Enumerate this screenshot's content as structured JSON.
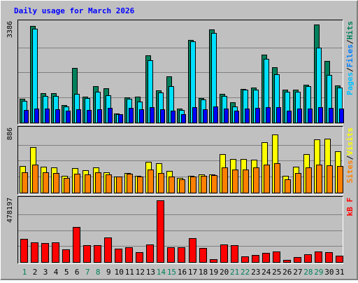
{
  "chart_data": {
    "type": "bar",
    "title": "Daily usage for March 2026",
    "categories": [
      "1",
      "2",
      "3",
      "4",
      "5",
      "6",
      "7",
      "8",
      "9",
      "10",
      "11",
      "12",
      "13",
      "14",
      "15",
      "16",
      "17",
      "18",
      "19",
      "20",
      "21",
      "22",
      "23",
      "24",
      "25",
      "26",
      "27",
      "28",
      "29",
      "30",
      "31"
    ],
    "weekend_days": [
      "1",
      "7",
      "8",
      "14",
      "15",
      "21",
      "22",
      "28",
      "29"
    ],
    "panels": [
      {
        "id": "hits-files-pages",
        "ymax_label": "3386",
        "ymax": 3386,
        "legend": [
          {
            "label": "Pages",
            "color": "#00c0ff"
          },
          {
            "label": "/",
            "color": "#000000"
          },
          {
            "label": "Files",
            "color": "#0080ff"
          },
          {
            "label": "/",
            "color": "#000000"
          },
          {
            "label": "Hits",
            "color": "#00805c"
          }
        ],
        "series": [
          {
            "name": "Hits",
            "color": "#00805c",
            "values": [
              823,
              3308,
              1015,
              1015,
              613,
              1882,
              918,
              1264,
              1188,
              337,
              872,
              898,
              2307,
              1125,
              1609,
              490,
              2836,
              849,
              3193,
              1008,
              705,
              1179,
              1227,
              2329,
              1900,
              1142,
              1142,
              1310,
              3360,
              2114,
              1294
            ]
          },
          {
            "name": "Files",
            "color": "#00e0ff",
            "values": [
              766,
              3231,
              926,
              926,
              575,
              996,
              858,
              1073,
              954,
              299,
              823,
              747,
              2146,
              1039,
              1264,
              452,
              2798,
              816,
              3078,
              926,
              579,
              1141,
              1151,
              2191,
              1671,
              1065,
              1065,
              1264,
              2575,
              1650,
              1217
            ]
          },
          {
            "name": "Pages",
            "color": "#0000ff",
            "values": [
              460,
              500,
              500,
              470,
              430,
              470,
              460,
              480,
              520,
              300,
              520,
              470,
              560,
              480,
              440,
              320,
              560,
              470,
              580,
              500,
              420,
              490,
              520,
              560,
              560,
              440,
              500,
              490,
              540,
              530,
              490
            ]
          }
        ]
      },
      {
        "id": "visits-sites",
        "ymax_label": "886",
        "ymax": 886,
        "legend": [
          {
            "label": "Sites",
            "color": "#ff8000"
          },
          {
            "label": "/",
            "color": "#000000"
          },
          {
            "label": "Visits",
            "color": "#ffff00"
          }
        ],
        "series": [
          {
            "name": "Visits",
            "color": "#ffff00",
            "values": [
              386,
              652,
              377,
              368,
              242,
              350,
              325,
              368,
              300,
              233,
              288,
              251,
              440,
              422,
              314,
              215,
              242,
              270,
              270,
              552,
              480,
              480,
              475,
              723,
              830,
              242,
              377,
              552,
              760,
              770,
              590
            ]
          },
          {
            "name": "Sites",
            "color": "#ff8000",
            "values": [
              300,
              405,
              300,
              290,
              220,
              280,
              270,
              300,
              270,
              240,
              275,
              240,
              336,
              290,
              240,
              195,
              240,
              250,
              260,
              368,
              336,
              336,
              368,
              405,
              420,
              200,
              290,
              360,
              400,
              392,
              386
            ]
          }
        ]
      },
      {
        "id": "kbytes",
        "ymax_label": "478197",
        "ymax": 478197,
        "legend": [
          {
            "label": "kB F",
            "color": "#ff0000"
          }
        ],
        "series": [
          {
            "name": "kB F",
            "color": "#ff0000",
            "values": [
              184000,
              154000,
              150000,
              154000,
              103000,
              272000,
              132000,
              132000,
              191000,
              110000,
              118000,
              81000,
              140000,
              478197,
              118000,
              118000,
              187000,
              114000,
              29000,
              140000,
              132000,
              51000,
              59000,
              77000,
              88000,
              22000,
              44000,
              62000,
              88000,
              80000,
              55000
            ]
          }
        ]
      }
    ]
  }
}
